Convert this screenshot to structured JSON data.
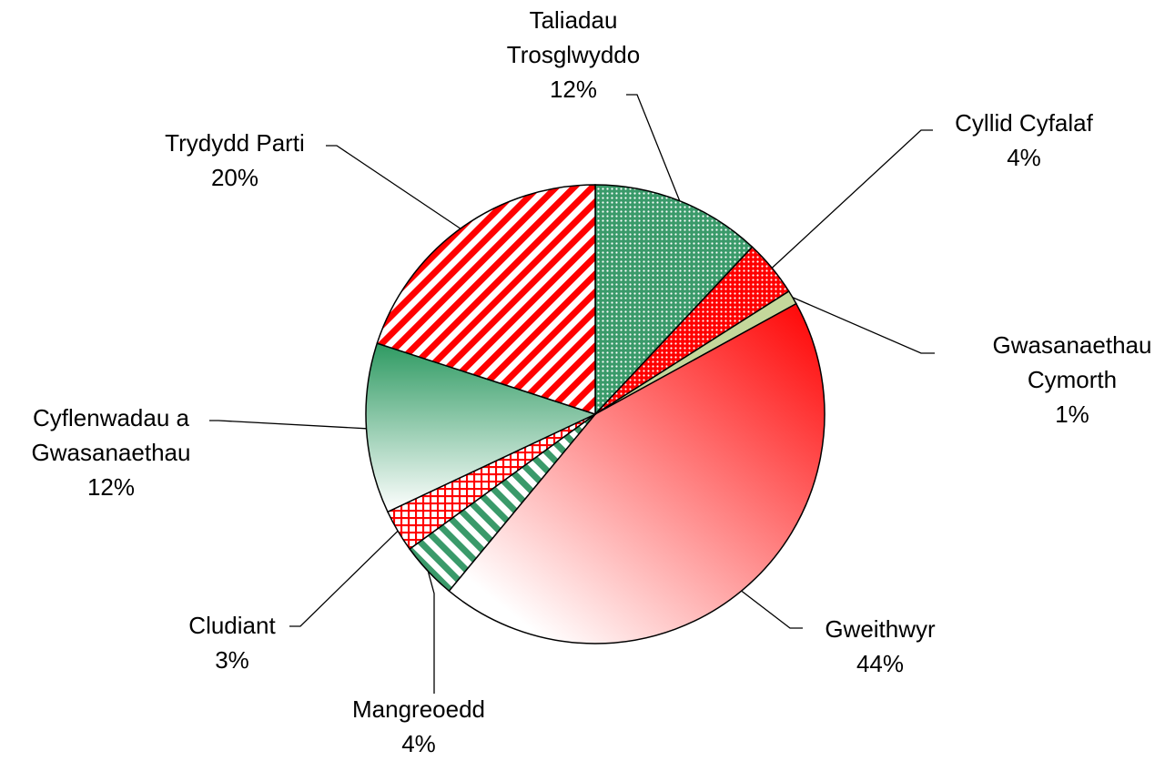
{
  "chart_data": {
    "type": "pie",
    "categories": [
      "Taliadau Trosglwyddo",
      "Cyllid Cyfalaf",
      "Gwasanaethau Cymorth",
      "Gweithwyr",
      "Mangreoedd",
      "Cludiant",
      "Cyflenwadau a Gwasanaethau",
      "Trydydd Parti"
    ],
    "values": [
      12,
      4,
      1,
      44,
      4,
      3,
      12,
      20
    ],
    "value_labels": [
      "12%",
      "4%",
      "1%",
      "44%",
      "4%",
      "3%",
      "12%",
      "20%"
    ],
    "colors": [
      "#3a9a6a",
      "#ff0000",
      "#c4d79b",
      "#ff0000",
      "#3a9a6a",
      "#ff0000",
      "#2e9a62",
      "#ff0000"
    ],
    "patterns": [
      "dots",
      "dots",
      "solid",
      "gradient-diagonal",
      "stripes-down",
      "grid",
      "gradient-vertical",
      "stripes-up"
    ]
  }
}
